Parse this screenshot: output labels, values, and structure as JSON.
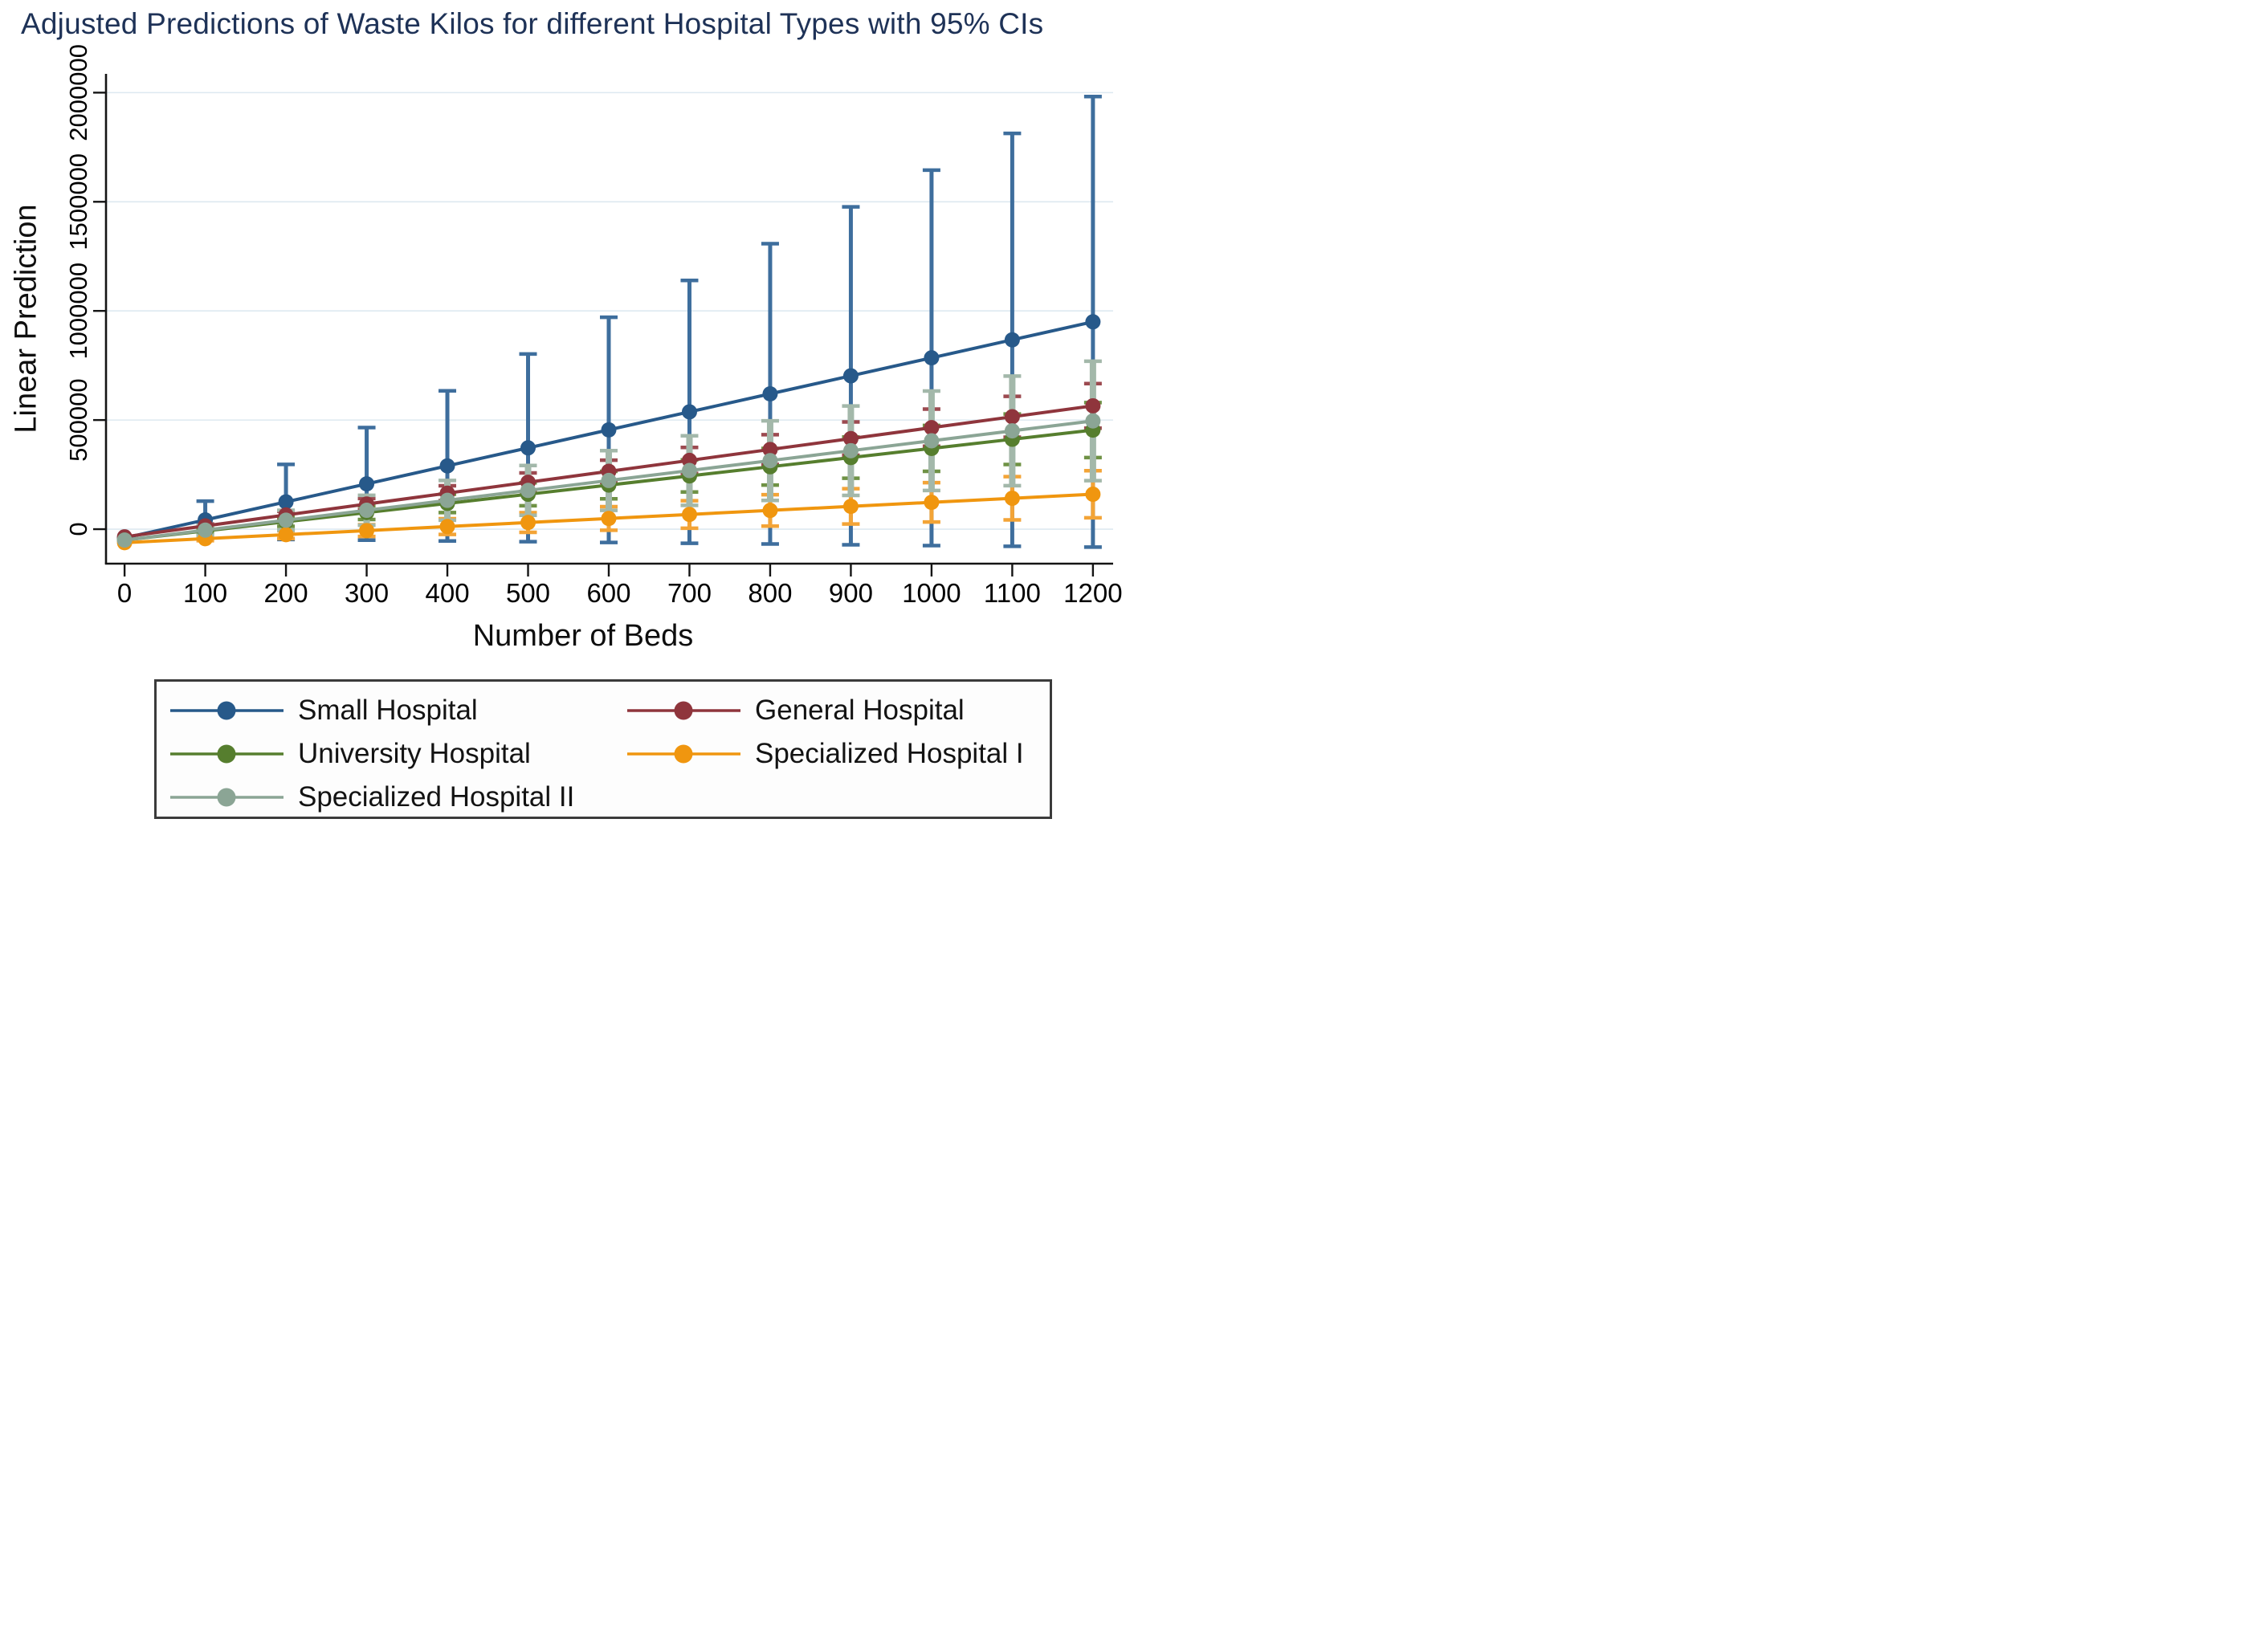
{
  "page": {
    "background": "#ffffff"
  },
  "chart_data": {
    "type": "line",
    "title": "Adjusted Predictions of Waste Kilos for different Hospital Types with 95% CIs",
    "title_color": "#1e3257",
    "xlabel": "Number of Beds",
    "ylabel": "Linear Prediction",
    "error_bars": "95% CIs",
    "grid": "horizontal",
    "grid_color": "#dde9f0",
    "axis_color": "#141414",
    "tick_color": "#000000",
    "legend_position": "bottom",
    "xlim": [
      -23,
      1225
    ],
    "ylim": [
      -158000,
      2086000
    ],
    "x": [
      0,
      100,
      200,
      300,
      400,
      500,
      600,
      700,
      800,
      900,
      1000,
      1100,
      1200
    ],
    "x_tick_labels": [
      "0",
      "100",
      "200",
      "300",
      "400",
      "500",
      "600",
      "700",
      "800",
      "900",
      "1000",
      "1100",
      "1200"
    ],
    "y_ticks": [
      0,
      500000,
      1000000,
      1500000,
      2000000
    ],
    "y_tick_labels": [
      "0",
      "500000",
      "1000000",
      "1500000",
      "2000000"
    ],
    "series": [
      {
        "name": "Small Hospital",
        "color": "#27598a",
        "ci_color": "#3e6e9d",
        "ci_width": 5,
        "y": [
          -40000,
          42500,
          125000,
          207500,
          290000,
          372500,
          455000,
          537500,
          620000,
          702500,
          785000,
          867500,
          950000
        ],
        "ci_low": [
          -40000,
          -43500,
          -47000,
          -50500,
          -54000,
          -57500,
          -61000,
          -64500,
          -68000,
          -71500,
          -75000,
          -78500,
          -82000
        ],
        "ci_high": [
          -40000,
          128500,
          297000,
          465500,
          634000,
          802500,
          971000,
          1139500,
          1308000,
          1476500,
          1645000,
          1813500,
          1982000
        ]
      },
      {
        "name": "General Hospital",
        "color": "#8f353c",
        "ci_color": "#9c4a50",
        "ci_width": 5,
        "y": [
          -35000,
          15000,
          65000,
          115000,
          165000,
          215000,
          265000,
          315000,
          365000,
          415000,
          465000,
          515000,
          565000
        ],
        "ci_low": [
          -35000,
          6500,
          48000,
          89500,
          131000,
          172500,
          214000,
          255500,
          297000,
          338500,
          380000,
          421500,
          463000
        ],
        "ci_high": [
          -35000,
          23500,
          82000,
          140500,
          199000,
          257500,
          316000,
          374500,
          433000,
          491500,
          550000,
          608500,
          667000
        ]
      },
      {
        "name": "University Hospital",
        "color": "#567e2e",
        "ci_color": "#6f9245",
        "ci_width": 5,
        "y": [
          -50000,
          -8000,
          34000,
          76000,
          118000,
          160000,
          202000,
          244000,
          286000,
          328000,
          370000,
          412000,
          454000
        ],
        "ci_low": [
          -50000,
          -18500,
          13000,
          44500,
          76000,
          107500,
          139000,
          170500,
          202000,
          233500,
          265000,
          296500,
          328000
        ],
        "ci_high": [
          -50000,
          2500,
          55000,
          107500,
          160000,
          212500,
          265000,
          317500,
          370000,
          422500,
          475000,
          527500,
          580000
        ]
      },
      {
        "name": "Specialized Hospital I",
        "color": "#f0960f",
        "ci_color": "#f3a437",
        "ci_width": 5,
        "y": [
          -62000,
          -43500,
          -25000,
          -6500,
          12000,
          30500,
          49000,
          67500,
          86000,
          104500,
          123000,
          141500,
          160000
        ],
        "ci_low": [
          -62000,
          -52500,
          -43000,
          -33500,
          -24000,
          -14500,
          -5000,
          4500,
          14000,
          23500,
          33000,
          42500,
          52000
        ],
        "ci_high": [
          -62000,
          -34500,
          -7000,
          20500,
          48000,
          75500,
          103000,
          130500,
          158000,
          185500,
          213000,
          240500,
          268000
        ]
      },
      {
        "name": "Specialized Hospital II",
        "color": "#8ba595",
        "ci_color": "#a3b8aa",
        "ci_width": 8,
        "y": [
          -50000,
          -4500,
          41000,
          86500,
          132000,
          177500,
          223000,
          268500,
          314000,
          359500,
          405000,
          450500,
          496000
        ],
        "ci_low": [
          -50000,
          -27500,
          -4500,
          18000,
          41000,
          63500,
          86000,
          109000,
          131500,
          154500,
          177000,
          199500,
          222500
        ],
        "ci_high": [
          -50000,
          18500,
          86500,
          155000,
          223000,
          291500,
          360000,
          428000,
          496500,
          564500,
          633000,
          701500,
          769500
        ]
      }
    ]
  }
}
